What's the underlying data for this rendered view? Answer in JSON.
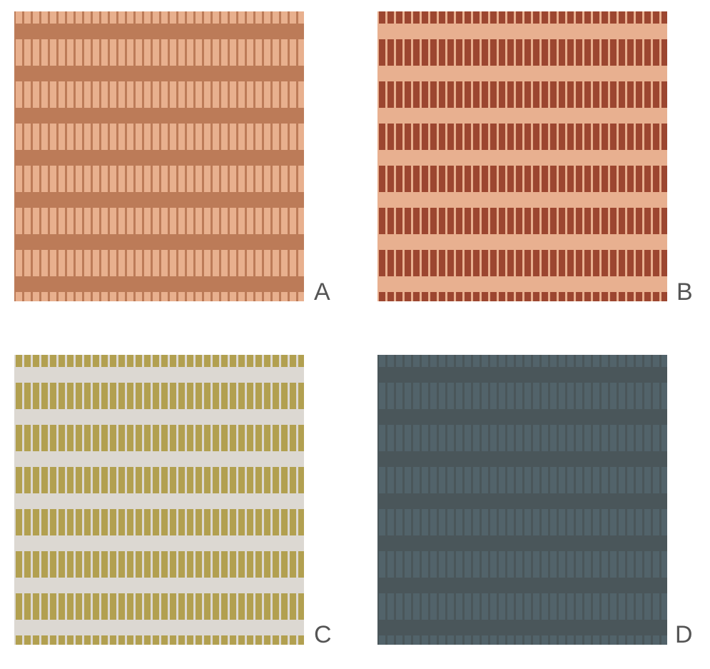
{
  "panels": [
    {
      "label": "A",
      "band_color": "#bc7b58",
      "bar_color": "#e8b08e",
      "bg_color": "#bc7b58"
    },
    {
      "label": "B",
      "band_color": "#e8b090",
      "bar_color": "#9c4630",
      "bg_color": "#e8b090"
    },
    {
      "label": "C",
      "band_color": "#dcd8d2",
      "bar_color": "#b2a050",
      "bg_color": "#dcd8d2"
    },
    {
      "label": "D",
      "band_color": "#4a565a",
      "bar_color": "#52636a",
      "bg_color": "#4a565a"
    }
  ]
}
